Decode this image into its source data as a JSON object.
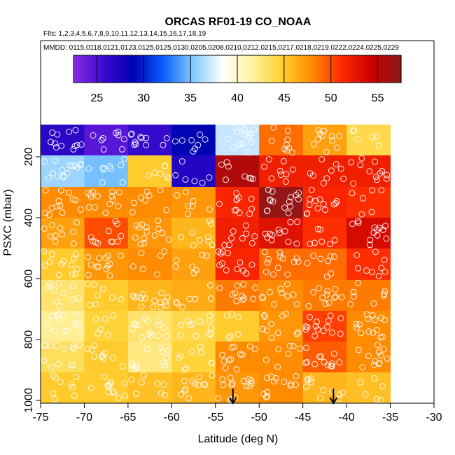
{
  "chart_data": {
    "type": "heatmap",
    "title": "ORCAS RF01-19 CO_NOAA",
    "flights_note": "Flts: 1,2,3,4,5,6,7,8,9,10,11,12,13,14,15,16,17,18,19",
    "dates_note": "MMDD: 0115,0118,0121,0123,0125,0125,0130,0205,0208,0210,0212,0215,0217,0218,0219,0222,0224,0225,0229",
    "xlabel": "Latitude (deg N)",
    "ylabel": "PSXC (mbar)",
    "xlim": [
      -75,
      -30
    ],
    "ylim": [
      1020,
      100
    ],
    "x_ticks": [
      -75,
      -70,
      -65,
      -60,
      -55,
      -50,
      -45,
      -40,
      -35,
      -30
    ],
    "y_ticks": [
      200,
      400,
      600,
      800,
      1000
    ],
    "colorbar": {
      "min": 22.5,
      "max": 57.5,
      "ticks": [
        25,
        30,
        35,
        40,
        45,
        50,
        55
      ],
      "colors": [
        "#8a2be2",
        "#3a0bd0",
        "#0000b0",
        "#0a5cff",
        "#7ec8ff",
        "#ffffff",
        "#fff2a0",
        "#ffd030",
        "#ff8c00",
        "#ff2a00",
        "#c80000",
        "#8b1a1a"
      ]
    },
    "x_bins": [
      -75,
      -70,
      -65,
      -60,
      -55,
      -50,
      -45,
      -40,
      -35
    ],
    "y_bins": [
      100,
      210,
      310,
      410,
      510,
      610,
      710,
      810,
      910,
      1010
    ],
    "cells": [
      [
        26.5,
        24.5,
        26.0,
        29.0,
        37.0,
        49.0,
        47.0,
        44.0
      ],
      [
        36.0,
        35.0,
        45.0,
        27.0,
        55.5,
        52.0,
        52.0,
        52.0
      ],
      [
        48.0,
        48.0,
        48.0,
        47.5,
        51.5,
        57.0,
        51.5,
        51.0
      ],
      [
        47.0,
        50.0,
        47.5,
        46.0,
        52.0,
        53.0,
        51.0,
        53.5
      ],
      [
        45.0,
        47.5,
        48.0,
        47.0,
        51.5,
        49.0,
        49.0,
        51.0
      ],
      [
        43.0,
        45.0,
        46.0,
        46.5,
        48.5,
        48.0,
        48.5,
        48.5
      ],
      [
        42.0,
        44.5,
        43.0,
        44.0,
        45.0,
        47.5,
        50.5,
        48.0
      ],
      [
        43.5,
        45.0,
        42.5,
        44.5,
        48.0,
        48.0,
        49.5,
        48.0
      ],
      [
        45.0,
        45.0,
        45.5,
        46.0,
        47.5,
        48.0,
        46.0,
        45.5
      ]
    ],
    "arrows_latitude": [
      -53,
      -41.5
    ]
  }
}
